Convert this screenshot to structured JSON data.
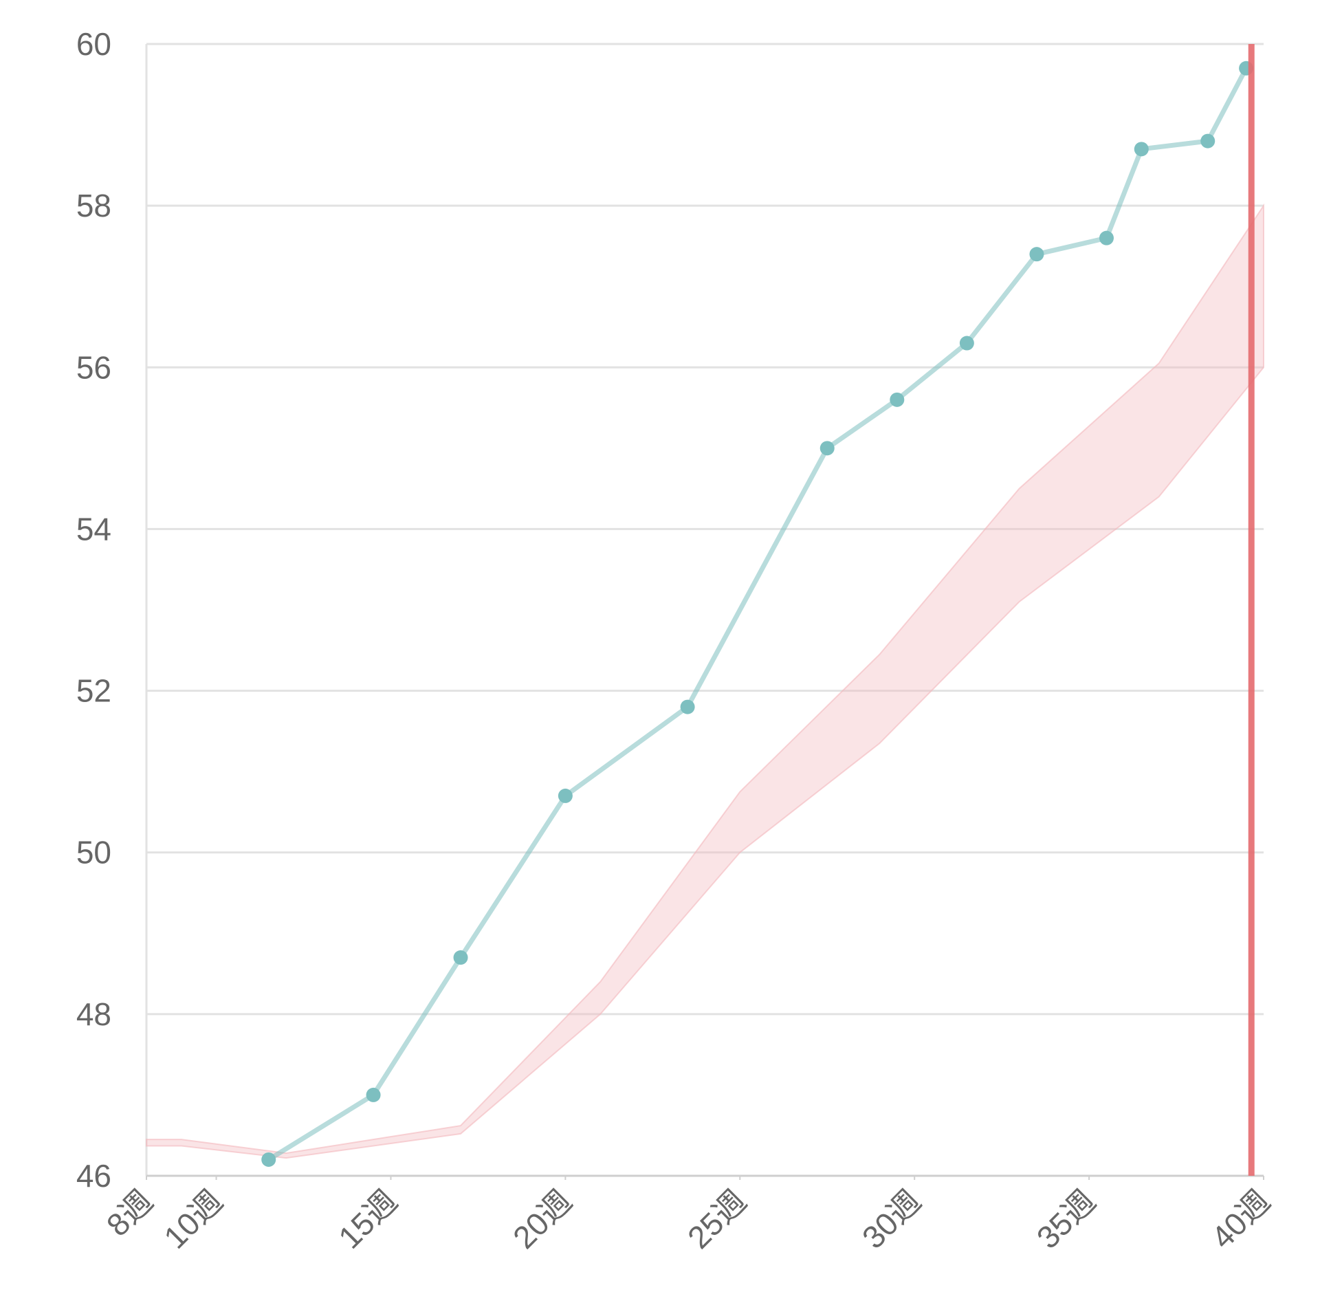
{
  "chart_data": {
    "type": "line",
    "title": "",
    "xlabel": "",
    "ylabel": "",
    "xlim": [
      8,
      40
    ],
    "ylim": [
      46,
      60
    ],
    "grid": true,
    "x_ticks": [
      {
        "value": 8,
        "label": "8週"
      },
      {
        "value": 10,
        "label": "10週"
      },
      {
        "value": 15,
        "label": "15週"
      },
      {
        "value": 20,
        "label": "20週"
      },
      {
        "value": 25,
        "label": "25週"
      },
      {
        "value": 30,
        "label": "30週"
      },
      {
        "value": 35,
        "label": "35週"
      },
      {
        "value": 40,
        "label": "40週"
      }
    ],
    "y_ticks": [
      {
        "value": 46,
        "label": "46"
      },
      {
        "value": 48,
        "label": "48"
      },
      {
        "value": 50,
        "label": "50"
      },
      {
        "value": 52,
        "label": "52"
      },
      {
        "value": 54,
        "label": "54"
      },
      {
        "value": 56,
        "label": "56"
      },
      {
        "value": 58,
        "label": "58"
      },
      {
        "value": 60,
        "label": "60"
      }
    ],
    "series": [
      {
        "color": "#7dbfc0",
        "points": [
          {
            "x": 11.5,
            "y": 46.2
          },
          {
            "x": 14.5,
            "y": 47.0
          },
          {
            "x": 17.0,
            "y": 48.7
          },
          {
            "x": 20.0,
            "y": 50.7
          },
          {
            "x": 23.5,
            "y": 51.8
          },
          {
            "x": 27.5,
            "y": 55.0
          },
          {
            "x": 29.5,
            "y": 55.6
          },
          {
            "x": 31.5,
            "y": 56.3
          },
          {
            "x": 33.5,
            "y": 57.4
          },
          {
            "x": 35.5,
            "y": 57.6
          },
          {
            "x": 36.5,
            "y": 58.7
          },
          {
            "x": 38.4,
            "y": 58.8
          },
          {
            "x": 39.5,
            "y": 59.7
          }
        ]
      }
    ],
    "reference_band": {
      "color": "#f3b8bc",
      "points": [
        {
          "x": 8,
          "low": 46.37,
          "high": 46.45
        },
        {
          "x": 9,
          "low": 46.37,
          "high": 46.45
        },
        {
          "x": 12,
          "low": 46.22,
          "high": 46.28
        },
        {
          "x": 17,
          "low": 46.52,
          "high": 46.62
        },
        {
          "x": 21,
          "low": 48.0,
          "high": 48.4
        },
        {
          "x": 25,
          "low": 50.0,
          "high": 50.75
        },
        {
          "x": 29,
          "low": 51.35,
          "high": 52.45
        },
        {
          "x": 33,
          "low": 53.1,
          "high": 54.5
        },
        {
          "x": 37,
          "low": 54.4,
          "high": 56.05
        },
        {
          "x": 40,
          "low": 56.0,
          "high": 58.0
        }
      ]
    },
    "reference_line": {
      "x": 39.65,
      "color": "#e46a6e"
    }
  }
}
